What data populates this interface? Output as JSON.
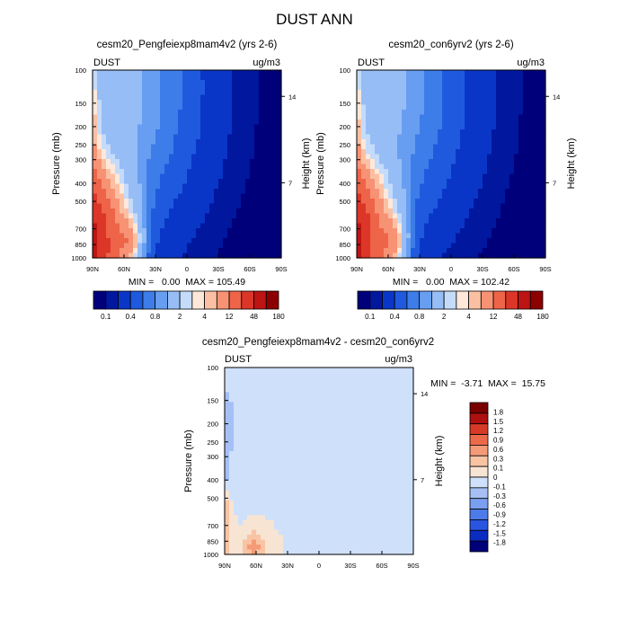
{
  "title": "DUST ANN",
  "colors": {
    "abs_scale": [
      "#00007a",
      "#00179e",
      "#0a36c8",
      "#1f5ade",
      "#3d7de9",
      "#689ef1",
      "#96bdf5",
      "#c4dbfa",
      "#ffe8da",
      "#fbc0a3",
      "#f79274",
      "#ee6448",
      "#dc3628",
      "#bd1414",
      "#8c0000"
    ],
    "diff_scale": [
      "#00007a",
      "#0b2cc0",
      "#2a55e0",
      "#4d7ae9",
      "#7a9ef0",
      "#a6c0f5",
      "#cfe0fa",
      "#f7e4d3",
      "#f9c4a4",
      "#f59a77",
      "#ec6a4a",
      "#d63a26",
      "#ae0f0f",
      "#7a0000"
    ]
  },
  "chart_data": [
    {
      "type": "contour",
      "title": "cesm20_Pengfeiexp8mam4v2 (yrs 2-6)",
      "variable_label": "DUST",
      "units": "ug/m3",
      "ylabel": "Pressure (mb)",
      "ylabel_right": "Height (km)",
      "x_ticks": [
        "90N",
        "60N",
        "30N",
        "0",
        "30S",
        "60S",
        "90S"
      ],
      "y_ticks": [
        100,
        150,
        200,
        250,
        300,
        400,
        500,
        700,
        850,
        1000
      ],
      "y_right_ticks": [
        14,
        7
      ],
      "ylim": [
        1000,
        100
      ],
      "log_y": true,
      "stats": "MIN =   0.00  MAX = 105.49",
      "min": 0.0,
      "max": 105.49,
      "colorbar_labels": [
        "0.1",
        "0.4",
        "0.8",
        "2",
        "4",
        "12",
        "48",
        "180"
      ],
      "colorbar_levels": [
        0.1,
        0.2,
        0.4,
        0.6,
        0.8,
        1,
        2,
        3,
        4,
        6,
        12,
        24,
        48,
        96,
        180
      ]
    },
    {
      "type": "contour",
      "title": "cesm20_con6yrv2 (yrs 2-6)",
      "variable_label": "DUST",
      "units": "ug/m3",
      "ylabel": "Pressure (mb)",
      "ylabel_right": "Height (km)",
      "x_ticks": [
        "90N",
        "60N",
        "30N",
        "0",
        "30S",
        "60S",
        "90S"
      ],
      "y_ticks": [
        100,
        150,
        200,
        250,
        300,
        400,
        500,
        700,
        850,
        1000
      ],
      "y_right_ticks": [
        14,
        7
      ],
      "ylim": [
        1000,
        100
      ],
      "log_y": true,
      "stats": "MIN =   0.00  MAX = 102.42",
      "min": 0.0,
      "max": 102.42,
      "colorbar_labels": [
        "0.1",
        "0.4",
        "0.8",
        "2",
        "4",
        "12",
        "48",
        "180"
      ],
      "colorbar_levels": [
        0.1,
        0.2,
        0.4,
        0.6,
        0.8,
        1,
        2,
        3,
        4,
        6,
        12,
        24,
        48,
        96,
        180
      ]
    },
    {
      "type": "contour",
      "title": "cesm20_Pengfeiexp8mam4v2 - cesm20_con6yrv2",
      "variable_label": "DUST",
      "units": "ug/m3",
      "ylabel": "Pressure (mb)",
      "ylabel_right": "Height (km)",
      "x_ticks": [
        "90N",
        "60N",
        "30N",
        "0",
        "30S",
        "60S",
        "90S"
      ],
      "y_ticks": [
        100,
        150,
        200,
        250,
        300,
        400,
        500,
        700,
        850,
        1000
      ],
      "y_right_ticks": [
        14,
        7
      ],
      "ylim": [
        1000,
        100
      ],
      "log_y": true,
      "stats": "MIN =  -3.71  MAX =  15.75",
      "min": -3.71,
      "max": 15.75,
      "colorbar_labels": [
        "1.8",
        "1.5",
        "1.2",
        "0.9",
        "0.6",
        "0.3",
        "0.1",
        "0",
        "-0.1",
        "-0.3",
        "-0.6",
        "-0.9",
        "-1.2",
        "-1.5",
        "-1.8"
      ],
      "colorbar_levels": [
        1.8,
        1.5,
        1.2,
        0.9,
        0.6,
        0.3,
        0.1,
        0,
        -0.1,
        -0.3,
        -0.6,
        -0.9,
        -1.2,
        -1.5,
        -1.8
      ]
    }
  ]
}
